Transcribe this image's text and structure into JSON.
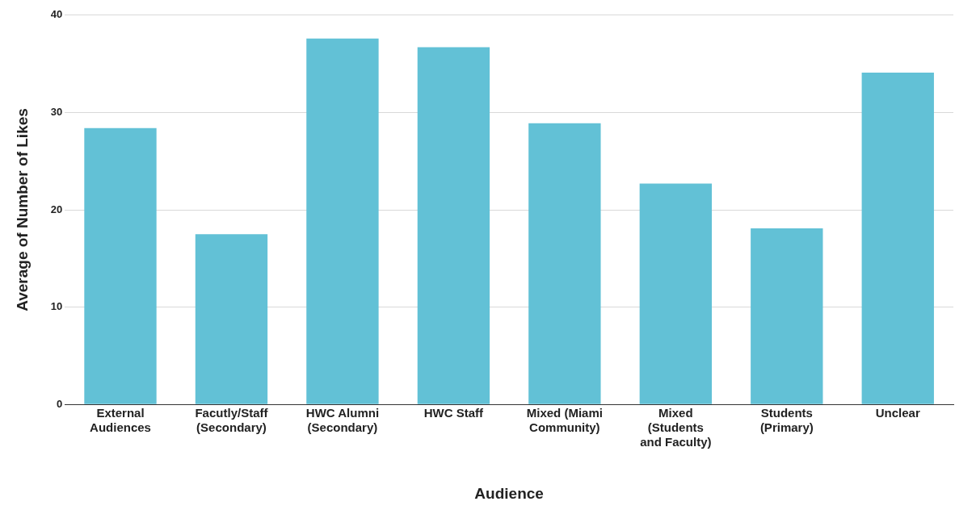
{
  "chart_data": {
    "type": "bar",
    "xlabel": "Audience",
    "ylabel": "Average of Number of Likes",
    "categories": [
      "External Audiences",
      "Facutly/Staff (Secondary)",
      "HWC Alumni (Secondary)",
      "HWC Staff",
      "Mixed (Miami Community)",
      "Mixed (Students and Faculty)",
      "Students (Primary)",
      "Unclear"
    ],
    "values": [
      28.4,
      17.5,
      37.6,
      36.7,
      28.9,
      22.7,
      18.1,
      34.1
    ],
    "color": "#62c1d6",
    "ylim": [
      0,
      40
    ],
    "yticks": [
      0,
      10,
      20,
      30,
      40
    ],
    "grid": "y",
    "legend": false
  }
}
